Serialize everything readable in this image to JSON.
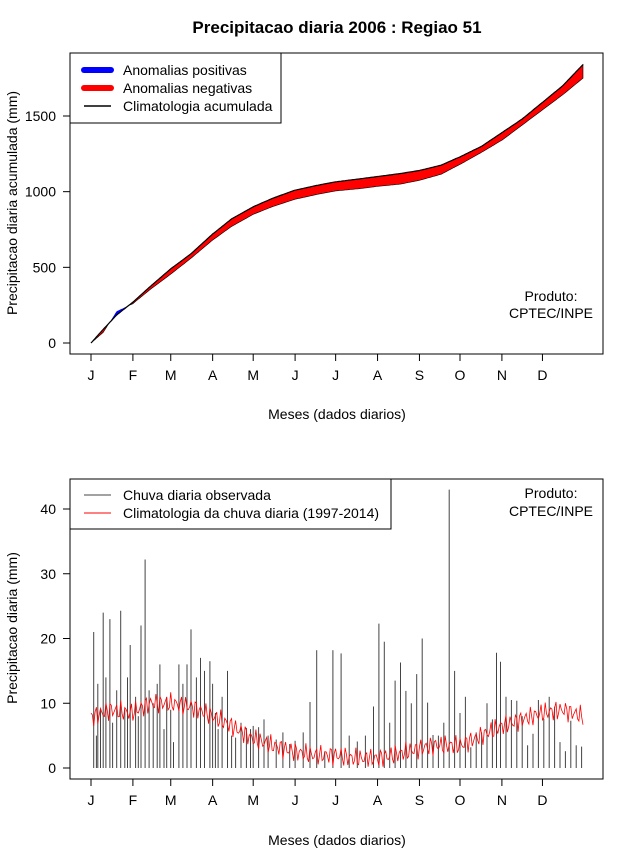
{
  "title": "Precipitacao diaria 2006 : Regiao 51",
  "top_chart": {
    "ylabel": "Precipitacao diaria acumulada (mm)",
    "xlabel": "Meses (dados diarios)",
    "yticks": [
      "0",
      "500",
      "1000",
      "1500"
    ],
    "legend": [
      "Anomalias positivas",
      "Anomalias negativas",
      "Climatologia acumulada"
    ],
    "credit_1": "Produto:",
    "credit_2": "CPTEC/INPE"
  },
  "bottom_chart": {
    "ylabel": "Precipitacao diaria (mm)",
    "xlabel": "Meses (dados diarios)",
    "yticks": [
      "0",
      "10",
      "20",
      "30",
      "40"
    ],
    "legend": [
      "Chuva diaria observada",
      "Climatologia da chuva diaria (1997-2014)"
    ],
    "credit_1": "Produto:",
    "credit_2": "CPTEC/INPE"
  },
  "months": [
    "J",
    "F",
    "M",
    "A",
    "M",
    "J",
    "J",
    "A",
    "S",
    "O",
    "N",
    "D"
  ],
  "colors": {
    "positive": "#0000ff",
    "negative": "#ff0000",
    "climatology": "#000000",
    "observed": "#444444",
    "clim_daily": "#ff0000"
  },
  "chart_data": [
    {
      "type": "area",
      "title": "Precipitacao diaria 2006 : Regiao 51",
      "xlabel": "Meses (dados diarios)",
      "ylabel": "Precipitacao diaria acumulada (mm)",
      "xlim": [
        1,
        365
      ],
      "ylim": [
        0,
        1850
      ],
      "x_ticks": [
        {
          "label": "J",
          "day": 1
        },
        {
          "label": "F",
          "day": 32
        },
        {
          "label": "M",
          "day": 60
        },
        {
          "label": "A",
          "day": 91
        },
        {
          "label": "M",
          "day": 121
        },
        {
          "label": "J",
          "day": 152
        },
        {
          "label": "J",
          "day": 182
        },
        {
          "label": "A",
          "day": 213
        },
        {
          "label": "S",
          "day": 244
        },
        {
          "label": "O",
          "day": 274
        },
        {
          "label": "N",
          "day": 305
        },
        {
          "label": "D",
          "day": 335
        }
      ],
      "climatology_cumulative": {
        "days": [
          1,
          10,
          20,
          32,
          45,
          60,
          75,
          91,
          105,
          121,
          135,
          152,
          170,
          182,
          200,
          213,
          230,
          244,
          260,
          274,
          290,
          305,
          320,
          335,
          350,
          365
        ],
        "mm": [
          0,
          90,
          185,
          270,
          375,
          490,
          590,
          720,
          820,
          900,
          955,
          1010,
          1045,
          1065,
          1085,
          1100,
          1120,
          1140,
          1175,
          1230,
          1300,
          1390,
          1480,
          1590,
          1700,
          1840
        ]
      },
      "observed_cumulative": {
        "days": [
          1,
          10,
          20,
          32,
          45,
          60,
          75,
          91,
          105,
          121,
          135,
          152,
          170,
          182,
          200,
          213,
          230,
          244,
          260,
          274,
          290,
          305,
          320,
          335,
          350,
          365
        ],
        "mm": [
          0,
          70,
          210,
          260,
          355,
          455,
          560,
          680,
          770,
          850,
          900,
          950,
          985,
          1005,
          1020,
          1035,
          1050,
          1075,
          1115,
          1180,
          1260,
          1340,
          1440,
          1540,
          1640,
          1750
        ]
      },
      "legend": [
        "Anomalias positivas",
        "Anomalias negativas",
        "Climatologia acumulada"
      ]
    },
    {
      "type": "bar",
      "xlabel": "Meses (dados diarios)",
      "ylabel": "Precipitacao diaria (mm)",
      "xlim": [
        1,
        365
      ],
      "ylim": [
        0,
        43
      ],
      "series": [
        {
          "name": "Chuva diaria observada",
          "days": [
            3,
            5,
            6,
            8,
            10,
            12,
            15,
            17,
            20,
            23,
            26,
            28,
            30,
            34,
            36,
            38,
            41,
            44,
            47,
            50,
            52,
            55,
            57,
            60,
            62,
            66,
            69,
            72,
            75,
            79,
            82,
            85,
            89,
            91,
            93,
            95,
            98,
            102,
            105,
            108,
            112,
            116,
            119,
            121,
            125,
            129,
            132,
            138,
            143,
            148,
            152,
            158,
            163,
            168,
            174,
            180,
            186,
            192,
            198,
            204,
            210,
            214,
            218,
            222,
            226,
            230,
            234,
            238,
            242,
            246,
            250,
            254,
            258,
            262,
            266,
            270,
            274,
            278,
            282,
            286,
            290,
            294,
            298,
            301,
            304,
            308,
            312,
            316,
            320,
            324,
            328,
            332,
            336,
            340,
            344,
            348,
            352,
            356,
            360,
            364
          ],
          "mm": [
            21,
            5,
            13,
            9,
            24,
            14,
            23,
            7,
            12,
            24.3,
            9,
            14,
            19,
            11,
            8,
            22,
            32.2,
            12,
            10,
            13,
            16,
            6,
            11,
            9,
            4,
            16,
            13,
            16,
            21.4,
            14,
            17,
            15,
            16.5,
            13,
            8.5,
            6,
            11,
            15,
            5,
            4.7,
            7,
            6.2,
            6,
            6.5,
            6.3,
            7.5,
            5,
            4.4,
            5.5,
            3.7,
            4.2,
            5.5,
            10.2,
            18.2,
            2.5,
            18.2,
            17.7,
            5,
            4.1,
            5,
            9.5,
            22.3,
            19.5,
            7,
            13.5,
            16.3,
            11.9,
            10,
            14.5,
            20,
            10.1,
            5.1,
            5,
            7,
            43,
            15,
            8.5,
            11,
            3.2,
            5.5,
            5.5,
            10,
            7.5,
            17.8,
            16.4,
            11,
            10.5,
            10.4,
            8,
            3.5,
            5.3,
            10.5,
            7.6,
            11,
            9.5,
            4,
            2.6,
            7.3,
            3.5,
            3.3
          ]
        },
        {
          "name": "Climatologia da chuva diaria (1997-2014)",
          "days": [
            1,
            15,
            30,
            45,
            60,
            75,
            91,
            105,
            121,
            135,
            152,
            165,
            182,
            195,
            213,
            225,
            244,
            255,
            274,
            290,
            305,
            320,
            335,
            350,
            365
          ],
          "mm": [
            7.8,
            9,
            8.5,
            10,
            10,
            9.5,
            8,
            6.5,
            4.5,
            3.5,
            2.5,
            2,
            2,
            1.5,
            1.5,
            2,
            3,
            3.5,
            3.5,
            5,
            6.5,
            7.5,
            8.5,
            9,
            8
          ]
        }
      ],
      "legend": [
        "Chuva diaria observada",
        "Climatologia da chuva diaria (1997-2014)"
      ]
    }
  ]
}
